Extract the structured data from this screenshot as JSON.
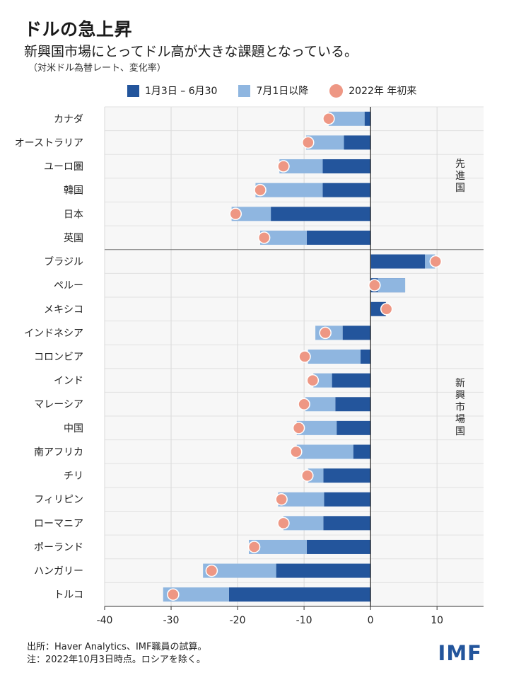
{
  "header": {
    "title": "ドルの急上昇",
    "subtitle": "新興国市場にとってドル高が大きな課題となっている。",
    "unit": "（対米ドル為替レート、変化率）"
  },
  "legend": {
    "s1": "1月3日 – 6月30",
    "s2": "7月1日以降",
    "s3": "2022年 年初来"
  },
  "colors": {
    "s1": "#23559c",
    "s2": "#8fb6e0",
    "dot": "#ee9784",
    "grid": "#d9d9d9",
    "plot_bg": "#f7f7f7"
  },
  "chart_data": {
    "type": "bar",
    "orientation": "horizontal",
    "xlim": [
      -40,
      17
    ],
    "x_ticks": [
      -40,
      -30,
      -20,
      -10,
      0,
      10
    ],
    "group_labels": [
      "先進国",
      "新興市場国"
    ],
    "categories": [
      "カナダ",
      "オーストラリア",
      "ユーロ圏",
      "韓国",
      "日本",
      "英国",
      "ブラジル",
      "ペルー",
      "メキシコ",
      "インドネシア",
      "コロンビア",
      "インド",
      "マレーシア",
      "中国",
      "南アフリカ",
      "チリ",
      "フィリピン",
      "ローマニア",
      "ポーランド",
      "ハンガリー",
      "トルコ"
    ],
    "groups": [
      "先進国",
      "先進国",
      "先進国",
      "先進国",
      "先進国",
      "先進国",
      "新興市場国",
      "新興市場国",
      "新興市場国",
      "新興市場国",
      "新興市場国",
      "新興市場国",
      "新興市場国",
      "新興市場国",
      "新興市場国",
      "新興市場国",
      "新興市場国",
      "新興市場国",
      "新興市場国",
      "新興市場国",
      "新興市場国"
    ],
    "series": [
      {
        "name": "1月3日 – 6月30",
        "values": [
          -0.9,
          -4.0,
          -7.2,
          -7.2,
          -15.0,
          -9.6,
          8.2,
          5.2,
          2.3,
          -4.2,
          -1.5,
          -5.8,
          -5.3,
          -5.1,
          -2.6,
          -7.1,
          -7.0,
          -7.1,
          -9.6,
          -14.2,
          -21.3
        ]
      },
      {
        "name": "7月1日以降",
        "values": [
          -5.4,
          -5.7,
          -6.5,
          -10.1,
          -5.9,
          -7.0,
          1.5,
          -4.1,
          0.0,
          -4.1,
          -7.9,
          -2.8,
          -4.5,
          -6.0,
          -8.5,
          -2.3,
          -6.9,
          -6.0,
          -8.7,
          -11.0,
          -9.9
        ]
      },
      {
        "name": "2022年 年初来",
        "values": [
          -6.3,
          -9.4,
          -13.1,
          -16.6,
          -20.3,
          -16.0,
          9.8,
          0.6,
          2.4,
          -6.8,
          -9.9,
          -8.7,
          -10.0,
          -10.8,
          -11.2,
          -9.5,
          -13.4,
          -13.1,
          -17.5,
          -23.9,
          -29.7
        ]
      }
    ]
  },
  "footer": {
    "source": "出所：Haver Analytics、IMF職員の試算。",
    "note": "注：2022年10月3日時点。ロシアを除く。",
    "logo": "IMF"
  }
}
